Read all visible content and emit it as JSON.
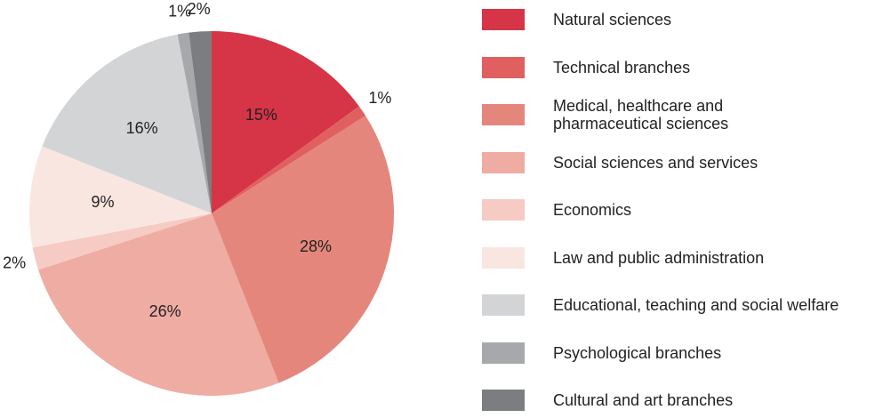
{
  "chart_data": {
    "type": "pie",
    "categories": [
      "Natural sciences",
      "Technical branches",
      "Medical, healthcare and pharmaceutical sciences",
      "Social sciences and services",
      "Economics",
      "Law and public administration",
      "Educational, teaching and social welfare",
      "Psychological branches",
      "Cultural and art branches"
    ],
    "values": [
      15,
      1,
      28,
      26,
      2,
      9,
      16,
      1,
      2
    ],
    "value_labels": [
      "15%",
      "1%",
      "28%",
      "26%",
      "2%",
      "9%",
      "16%",
      "1%",
      "2%"
    ],
    "colors": [
      "#d63447",
      "#e0605f",
      "#e5867d",
      "#efaca3",
      "#f5cbc4",
      "#fae6e0",
      "#d3d4d6",
      "#a7a8ab",
      "#7c7d80"
    ]
  }
}
